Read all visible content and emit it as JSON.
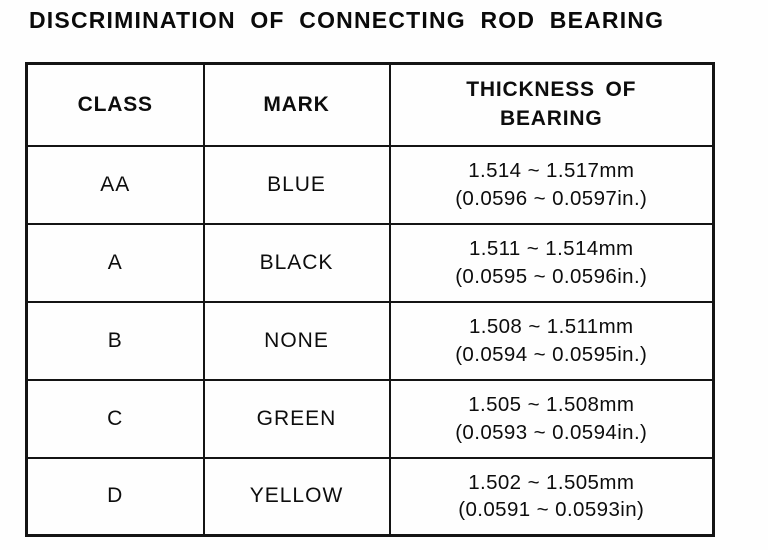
{
  "title": "DISCRIMINATION OF CONNECTING ROD BEARING",
  "table": {
    "headers": {
      "class": "CLASS",
      "mark": "MARK",
      "thickness": "THICKNESS OF BEARING"
    },
    "rows": [
      {
        "class": "AA",
        "mark": "BLUE",
        "thickness_mm": "1.514 ~ 1.517mm",
        "thickness_in": "(0.0596 ~ 0.0597in.)"
      },
      {
        "class": "A",
        "mark": "BLACK",
        "thickness_mm": "1.511 ~ 1.514mm",
        "thickness_in": "(0.0595 ~ 0.0596in.)"
      },
      {
        "class": "B",
        "mark": "NONE",
        "thickness_mm": "1.508 ~ 1.511mm",
        "thickness_in": "(0.0594 ~ 0.0595in.)"
      },
      {
        "class": "C",
        "mark": "GREEN",
        "thickness_mm": "1.505 ~ 1.508mm",
        "thickness_in": "(0.0593 ~ 0.0594in.)"
      },
      {
        "class": "D",
        "mark": "YELLOW",
        "thickness_mm": "1.502 ~ 1.505mm",
        "thickness_in": "(0.0591 ~ 0.0593in)"
      }
    ]
  }
}
